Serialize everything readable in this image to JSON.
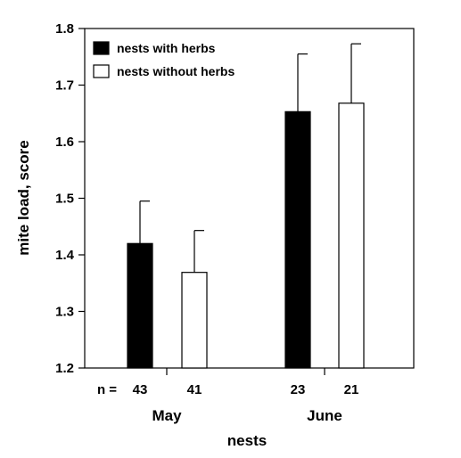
{
  "chart_data": {
    "type": "bar",
    "title": "",
    "xlabel": "nests",
    "ylabel": "mite load, score",
    "ylim": [
      1.2,
      1.8
    ],
    "yticks": [
      "1.2",
      "1.3",
      "1.4",
      "1.5",
      "1.6",
      "1.7",
      "1.8"
    ],
    "categories": [
      "May",
      "June"
    ],
    "series": [
      {
        "name": "nests with herbs",
        "color": "#000000",
        "values": [
          1.42,
          1.653
        ],
        "error_upper": [
          1.495,
          1.755
        ],
        "n": [
          "43",
          "23"
        ]
      },
      {
        "name": "nests without herbs",
        "color": "#ffffff",
        "values": [
          1.369,
          1.668
        ],
        "error_upper": [
          1.443,
          1.773
        ],
        "n": [
          "41",
          "21"
        ]
      }
    ],
    "n_prefix": "n =",
    "legend_position": "top-left",
    "grid": false
  }
}
